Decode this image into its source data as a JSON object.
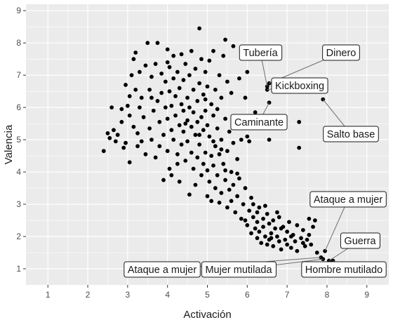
{
  "chart_data": {
    "type": "scatter",
    "xlabel": "Activación",
    "ylabel": "Valencia",
    "xlim": [
      0.45,
      9.55
    ],
    "ylim": [
      0.5,
      9.2
    ],
    "x_ticks": [
      1,
      2,
      3,
      4,
      5,
      6,
      7,
      8,
      9
    ],
    "y_ticks": [
      1,
      2,
      3,
      4,
      5,
      6,
      7,
      8,
      9
    ],
    "grid": true,
    "background": "#ebebeb",
    "grid_color": "#ffffff",
    "point_color": "#000000",
    "labeled_points": [
      {
        "label": "Tubería",
        "x": 6.5,
        "y": 6.65
      },
      {
        "label": "Dinero",
        "x": 6.55,
        "y": 6.75
      },
      {
        "label": "Kickboxing",
        "x": 6.5,
        "y": 6.55
      },
      {
        "label": "Caminante",
        "x": 6.55,
        "y": 6.15
      },
      {
        "label": "Salto base",
        "x": 7.9,
        "y": 6.25
      },
      {
        "label": "Ataque a mujer",
        "x": 7.95,
        "y": 1.55
      },
      {
        "label": "Guerra",
        "x": 8.05,
        "y": 1.25
      },
      {
        "label": "Ataque a mujer",
        "x": 7.85,
        "y": 1.35
      },
      {
        "label": "Mujer mutilada",
        "x": 7.9,
        "y": 1.3
      },
      {
        "label": "Hombre mutilado",
        "x": 8.15,
        "y": 1.25
      }
    ],
    "points": [
      [
        2.4,
        4.65
      ],
      [
        2.5,
        5.2
      ],
      [
        2.55,
        5.05
      ],
      [
        2.6,
        6.0
      ],
      [
        2.65,
        5.3
      ],
      [
        2.7,
        4.95
      ],
      [
        2.75,
        5.15
      ],
      [
        2.85,
        5.55
      ],
      [
        2.9,
        4.75
      ],
      [
        2.95,
        4.9
      ],
      [
        2.85,
        5.95
      ],
      [
        2.95,
        6.7
      ],
      [
        3.0,
        6.05
      ],
      [
        3.05,
        5.75
      ],
      [
        3.05,
        4.3
      ],
      [
        3.1,
        7.0
      ],
      [
        3.15,
        7.5
      ],
      [
        3.2,
        7.7
      ],
      [
        3.2,
        6.55
      ],
      [
        3.25,
        5.2
      ],
      [
        3.25,
        4.8
      ],
      [
        3.3,
        6.0
      ],
      [
        3.35,
        6.3
      ],
      [
        3.4,
        5.7
      ],
      [
        3.45,
        7.3
      ],
      [
        3.45,
        4.55
      ],
      [
        3.5,
        8.0
      ],
      [
        3.55,
        6.55
      ],
      [
        3.6,
        6.95
      ],
      [
        3.6,
        5.0
      ],
      [
        3.65,
        5.9
      ],
      [
        3.7,
        7.35
      ],
      [
        3.7,
        4.45
      ],
      [
        3.75,
        8.0
      ],
      [
        3.75,
        6.2
      ],
      [
        3.8,
        5.55
      ],
      [
        3.8,
        4.8
      ],
      [
        3.85,
        7.05
      ],
      [
        3.85,
        6.45
      ],
      [
        3.9,
        5.15
      ],
      [
        3.9,
        3.75
      ],
      [
        3.95,
        6.8
      ],
      [
        3.95,
        6.0
      ],
      [
        4.0,
        7.8
      ],
      [
        4.0,
        7.4
      ],
      [
        4.0,
        5.65
      ],
      [
        4.0,
        4.65
      ],
      [
        4.05,
        7.25
      ],
      [
        4.05,
        6.5
      ],
      [
        4.05,
        4.1
      ],
      [
        4.1,
        6.05
      ],
      [
        4.1,
        5.3
      ],
      [
        4.1,
        3.9
      ],
      [
        4.15,
        7.6
      ],
      [
        4.15,
        6.9
      ],
      [
        4.15,
        5.0
      ],
      [
        4.2,
        6.35
      ],
      [
        4.2,
        5.75
      ],
      [
        4.25,
        7.1
      ],
      [
        4.25,
        4.55
      ],
      [
        4.3,
        6.6
      ],
      [
        4.3,
        5.45
      ],
      [
        4.3,
        3.7
      ],
      [
        4.35,
        7.65
      ],
      [
        4.35,
        6.1
      ],
      [
        4.35,
        4.85
      ],
      [
        4.4,
        6.85
      ],
      [
        4.4,
        5.9
      ],
      [
        4.4,
        5.25
      ],
      [
        4.45,
        7.35
      ],
      [
        4.45,
        4.35
      ],
      [
        4.5,
        6.3
      ],
      [
        4.5,
        5.6
      ],
      [
        4.5,
        4.95
      ],
      [
        4.55,
        7.0
      ],
      [
        4.55,
        6.0
      ],
      [
        4.55,
        3.3
      ],
      [
        4.6,
        7.75
      ],
      [
        4.6,
        5.4
      ],
      [
        4.6,
        4.6
      ],
      [
        4.65,
        6.55
      ],
      [
        4.65,
        5.85
      ],
      [
        4.65,
        4.1
      ],
      [
        4.7,
        7.2
      ],
      [
        4.7,
        5.15
      ],
      [
        4.7,
        3.6
      ],
      [
        4.75,
        6.2
      ],
      [
        4.75,
        5.55
      ],
      [
        4.75,
        4.45
      ],
      [
        4.8,
        8.45
      ],
      [
        4.8,
        6.75
      ],
      [
        4.8,
        4.85
      ],
      [
        4.85,
        7.5
      ],
      [
        4.85,
        5.7
      ],
      [
        4.85,
        3.9
      ],
      [
        4.9,
        6.4
      ],
      [
        4.9,
        5.3
      ],
      [
        4.9,
        4.25
      ],
      [
        4.95,
        7.1
      ],
      [
        4.95,
        5.9
      ],
      [
        4.95,
        4.6
      ],
      [
        5.0,
        6.65
      ],
      [
        5.0,
        5.45
      ],
      [
        5.0,
        3.25
      ],
      [
        5.0,
        4.05
      ],
      [
        5.05,
        7.45
      ],
      [
        5.05,
        5.1
      ],
      [
        5.05,
        3.7
      ],
      [
        5.1,
        6.1
      ],
      [
        5.1,
        4.5
      ],
      [
        5.1,
        3.1
      ],
      [
        5.15,
        7.75
      ],
      [
        5.15,
        5.75
      ],
      [
        5.15,
        4.2
      ],
      [
        5.2,
        6.55
      ],
      [
        5.2,
        4.8
      ],
      [
        5.2,
        3.5
      ],
      [
        5.25,
        5.35
      ],
      [
        5.25,
        3.9
      ],
      [
        5.3,
        7.0
      ],
      [
        5.3,
        4.55
      ],
      [
        5.3,
        3.05
      ],
      [
        5.35,
        6.3
      ],
      [
        5.35,
        5.0
      ],
      [
        5.35,
        3.35
      ],
      [
        5.4,
        7.6
      ],
      [
        5.4,
        4.25
      ],
      [
        5.45,
        8.1
      ],
      [
        5.45,
        5.65
      ],
      [
        5.45,
        3.75
      ],
      [
        5.5,
        6.8
      ],
      [
        5.5,
        4.65
      ],
      [
        5.5,
        2.9
      ],
      [
        5.55,
        5.25
      ],
      [
        5.55,
        3.45
      ],
      [
        5.6,
        6.45
      ],
      [
        5.6,
        4.0
      ],
      [
        5.6,
        3.1
      ],
      [
        5.65,
        7.9
      ],
      [
        5.65,
        3.6
      ],
      [
        5.7,
        5.5
      ],
      [
        5.7,
        2.75
      ],
      [
        5.75,
        4.4
      ],
      [
        5.75,
        3.25
      ],
      [
        5.8,
        6.9
      ],
      [
        5.8,
        3.8
      ],
      [
        5.85,
        2.55
      ],
      [
        5.85,
        5.0
      ],
      [
        5.9,
        3.0
      ],
      [
        5.95,
        6.3
      ],
      [
        5.95,
        3.5
      ],
      [
        6.0,
        2.35
      ],
      [
        6.0,
        7.1
      ],
      [
        6.05,
        4.95
      ],
      [
        6.05,
        2.8
      ],
      [
        6.1,
        3.2
      ],
      [
        6.1,
        2.1
      ],
      [
        6.15,
        2.6
      ],
      [
        6.2,
        5.85
      ],
      [
        6.2,
        2.25
      ],
      [
        6.25,
        2.45
      ],
      [
        6.25,
        1.95
      ],
      [
        6.3,
        2.9
      ],
      [
        6.3,
        2.15
      ],
      [
        6.35,
        1.8
      ],
      [
        6.4,
        2.55
      ],
      [
        6.4,
        2.3
      ],
      [
        6.45,
        2.0
      ],
      [
        6.5,
        2.7
      ],
      [
        6.5,
        1.75
      ],
      [
        6.55,
        2.4
      ],
      [
        6.55,
        5.0
      ],
      [
        6.6,
        2.1
      ],
      [
        6.6,
        1.95
      ],
      [
        6.65,
        2.5
      ],
      [
        6.65,
        1.7
      ],
      [
        6.7,
        2.25
      ],
      [
        6.75,
        2.0
      ],
      [
        6.8,
        2.6
      ],
      [
        6.8,
        1.85
      ],
      [
        6.85,
        1.6
      ],
      [
        6.9,
        2.3
      ],
      [
        6.95,
        1.9
      ],
      [
        7.0,
        2.15
      ],
      [
        7.0,
        1.75
      ],
      [
        7.05,
        2.45
      ],
      [
        7.1,
        1.65
      ],
      [
        7.15,
        2.05
      ],
      [
        7.2,
        1.85
      ],
      [
        7.25,
        2.35
      ],
      [
        7.25,
        1.55
      ],
      [
        7.3,
        4.75
      ],
      [
        7.3,
        5.55
      ],
      [
        7.35,
        1.95
      ],
      [
        7.4,
        2.2
      ],
      [
        7.45,
        1.7
      ],
      [
        7.5,
        1.9
      ],
      [
        7.55,
        2.05
      ],
      [
        7.6,
        1.75
      ],
      [
        7.65,
        2.3
      ],
      [
        7.7,
        2.5
      ],
      [
        7.75,
        1.5
      ],
      [
        5.85,
        5.55
      ],
      [
        6.0,
        5.1
      ],
      [
        5.65,
        4.9
      ],
      [
        5.25,
        5.95
      ],
      [
        4.95,
        6.25
      ],
      [
        4.45,
        5.5
      ],
      [
        4.25,
        4.25
      ],
      [
        3.55,
        5.35
      ],
      [
        3.35,
        4.95
      ],
      [
        3.15,
        5.4
      ],
      [
        3.05,
        6.35
      ],
      [
        3.3,
        7.1
      ],
      [
        3.6,
        6.3
      ],
      [
        4.8,
        5.15
      ],
      [
        5.15,
        4.95
      ],
      [
        5.35,
        4.7
      ],
      [
        5.45,
        4.05
      ],
      [
        5.75,
        3.95
      ],
      [
        6.15,
        3.0
      ],
      [
        6.45,
        2.95
      ],
      [
        6.75,
        2.75
      ],
      [
        6.25,
        2.75
      ],
      [
        5.95,
        2.5
      ],
      [
        6.85,
        2.25
      ],
      [
        7.1,
        2.0
      ],
      [
        7.4,
        1.8
      ],
      [
        7.55,
        2.55
      ],
      [
        6.55,
        1.9
      ]
    ]
  }
}
